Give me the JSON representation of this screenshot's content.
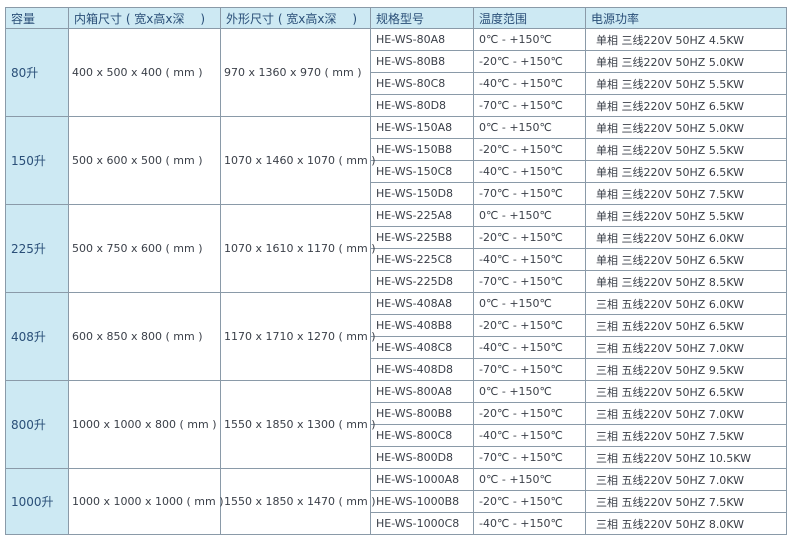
{
  "headers": [
    "容量",
    "内箱尺寸 ( 宽x高x深　 )",
    "外形尺寸 ( 宽x高x深　 )",
    "规格型号",
    "温度范围",
    "电源功率"
  ],
  "colors": {
    "header_bg": "#cde9f3",
    "border": "#8a9aa8",
    "header_text": "#2a4f78"
  },
  "groups": [
    {
      "capacity": "80升",
      "inner": "400 x 500 x 400 ( mm )",
      "outer": "970 x 1360 x 970 ( mm )",
      "rows": [
        {
          "model": "HE-WS-80A8",
          "temp": "0℃ - +150℃",
          "power": "单相 三线220V 50HZ 4.5KW"
        },
        {
          "model": "HE-WS-80B8",
          "temp": "-20℃ - +150℃",
          "power": "单相 三线220V 50HZ 5.0KW"
        },
        {
          "model": "HE-WS-80C8",
          "temp": "-40℃ - +150℃",
          "power": "单相 三线220V 50HZ 5.5KW"
        },
        {
          "model": "HE-WS-80D8",
          "temp": "-70℃ - +150℃",
          "power": "单相 三线220V 50HZ 6.5KW"
        }
      ]
    },
    {
      "capacity": "150升",
      "inner": "500 x 600 x 500 ( mm )",
      "outer": "1070 x 1460 x 1070 ( mm )",
      "rows": [
        {
          "model": "HE-WS-150A8",
          "temp": "0℃ - +150℃",
          "power": "单相 三线220V 50HZ 5.0KW"
        },
        {
          "model": "HE-WS-150B8",
          "temp": "-20℃ - +150℃",
          "power": "单相 三线220V 50HZ 5.5KW"
        },
        {
          "model": "HE-WS-150C8",
          "temp": "-40℃ - +150℃",
          "power": "单相 三线220V 50HZ 6.5KW"
        },
        {
          "model": "HE-WS-150D8",
          "temp": "-70℃ - +150℃",
          "power": "单相 三线220V 50HZ 7.5KW"
        }
      ]
    },
    {
      "capacity": "225升",
      "inner": "500 x 750 x 600 ( mm )",
      "outer": "1070 x 1610 x 1170 ( mm )",
      "rows": [
        {
          "model": "HE-WS-225A8",
          "temp": "0℃ - +150℃",
          "power": "单相 三线220V 50HZ 5.5KW"
        },
        {
          "model": "HE-WS-225B8",
          "temp": "-20℃ - +150℃",
          "power": "单相 三线220V 50HZ 6.0KW"
        },
        {
          "model": "HE-WS-225C8",
          "temp": "-40℃ - +150℃",
          "power": "单相 三线220V 50HZ 6.5KW"
        },
        {
          "model": "HE-WS-225D8",
          "temp": "-70℃ - +150℃",
          "power": "单相 三线220V 50HZ 8.5KW"
        }
      ]
    },
    {
      "capacity": "408升",
      "inner": "600 x 850 x 800 ( mm )",
      "outer": "1170 x 1710 x 1270 ( mm )",
      "rows": [
        {
          "model": "HE-WS-408A8",
          "temp": "0℃ - +150℃",
          "power": "三相 五线220V 50HZ 6.0KW"
        },
        {
          "model": "HE-WS-408B8",
          "temp": "-20℃ - +150℃",
          "power": "三相 五线220V 50HZ 6.5KW"
        },
        {
          "model": "HE-WS-408C8",
          "temp": "-40℃ - +150℃",
          "power": "三相 五线220V 50HZ 7.0KW"
        },
        {
          "model": "HE-WS-408D8",
          "temp": "-70℃ - +150℃",
          "power": "三相 五线220V 50HZ 9.5KW"
        }
      ]
    },
    {
      "capacity": "800升",
      "inner": "1000 x 1000 x 800 ( mm )",
      "outer": "1550 x 1850 x 1300 ( mm )",
      "rows": [
        {
          "model": "HE-WS-800A8",
          "temp": "0℃ - +150℃",
          "power": "三相 五线220V 50HZ 6.5KW"
        },
        {
          "model": "HE-WS-800B8",
          "temp": "-20℃ - +150℃",
          "power": "三相 五线220V 50HZ 7.0KW"
        },
        {
          "model": "HE-WS-800C8",
          "temp": "-40℃ - +150℃",
          "power": "三相 五线220V 50HZ 7.5KW"
        },
        {
          "model": "HE-WS-800D8",
          "temp": "-70℃ - +150℃",
          "power": "三相 五线220V 50HZ 10.5KW"
        }
      ]
    },
    {
      "capacity": "1000升",
      "inner": "1000 x 1000 x 1000 ( mm )",
      "outer": "1550 x 1850 x 1470 ( mm )",
      "rows": [
        {
          "model": "HE-WS-1000A8",
          "temp": "0℃ - +150℃",
          "power": "三相 五线220V 50HZ 7.0KW"
        },
        {
          "model": "HE-WS-1000B8",
          "temp": "-20℃ - +150℃",
          "power": "三相 五线220V 50HZ 7.5KW"
        },
        {
          "model": "HE-WS-1000C8",
          "temp": "-40℃ - +150℃",
          "power": "三相 五线220V 50HZ 8.0KW"
        }
      ]
    }
  ]
}
